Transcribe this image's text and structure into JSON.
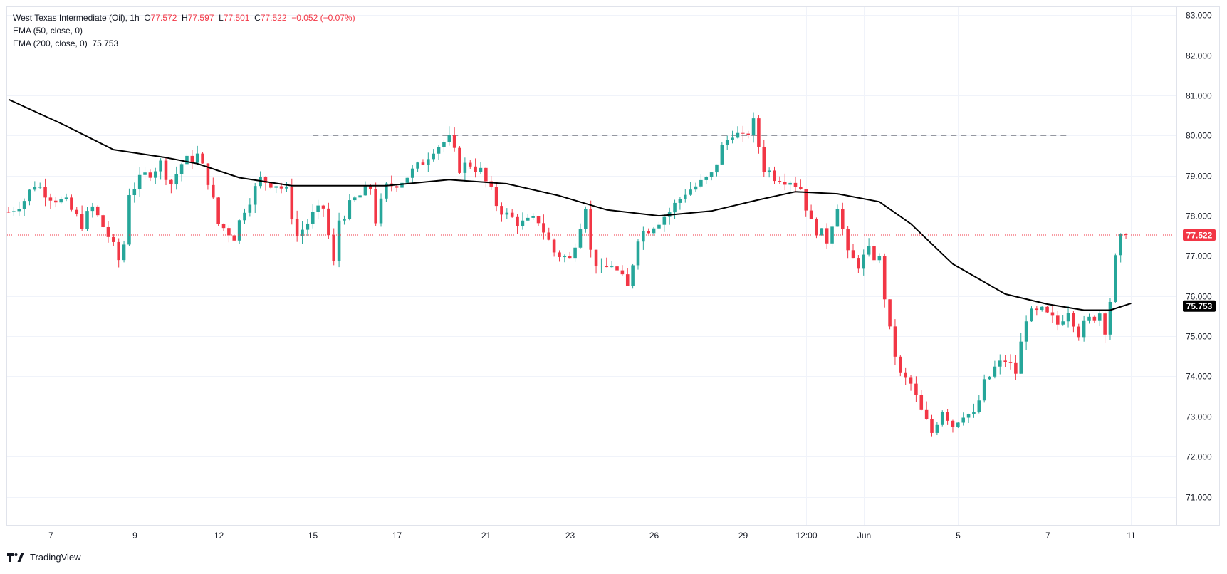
{
  "header": {
    "symbol": "West Texas Intermediate (Oil)",
    "interval": "1h",
    "o_label": "O",
    "o_value": "77.572",
    "h_label": "H",
    "h_value": "77.597",
    "l_label": "L",
    "l_value": "77.501",
    "c_label": "C",
    "c_value": "77.522",
    "change": "−0.052 (−0.07%)"
  },
  "indicators": [
    {
      "label": "EMA (50, close, 0)",
      "value": ""
    },
    {
      "label": "EMA (200, close, 0)",
      "value": "75.753"
    }
  ],
  "brand": "TradingView",
  "colors": {
    "up": "#26a69a",
    "down": "#f23645",
    "ema200": "#000000",
    "price_line": "#f23645",
    "grid": "#f0f3fa",
    "level_line": "#9598a1"
  },
  "chart_data": {
    "type": "candlestick",
    "title": "West Texas Intermediate (Oil), 1h",
    "ylim": [
      70.3,
      83.2
    ],
    "y_ticks": [
      "83.000",
      "82.000",
      "81.000",
      "80.000",
      "79.000",
      "78.000",
      "77.000",
      "76.000",
      "75.000",
      "74.000",
      "73.000",
      "72.000",
      "71.000"
    ],
    "x_ticks": [
      {
        "label": "7",
        "i": 8
      },
      {
        "label": "9",
        "i": 24
      },
      {
        "label": "12",
        "i": 40
      },
      {
        "label": "15",
        "i": 58
      },
      {
        "label": "17",
        "i": 74
      },
      {
        "label": "21",
        "i": 91
      },
      {
        "label": "23",
        "i": 107
      },
      {
        "label": "26",
        "i": 123
      },
      {
        "label": "29",
        "i": 140
      },
      {
        "label": "12:00",
        "i": 152
      },
      {
        "label": "Jun",
        "i": 163
      },
      {
        "label": "5",
        "i": 181
      },
      {
        "label": "7",
        "i": 198
      },
      {
        "label": "11",
        "i": 214
      }
    ],
    "x_count": 222,
    "close_anchors": [
      [
        0,
        78.1
      ],
      [
        3,
        78.4
      ],
      [
        5,
        78.8
      ],
      [
        8,
        78.5
      ],
      [
        11,
        78.3
      ],
      [
        14,
        77.8
      ],
      [
        16,
        78.2
      ],
      [
        19,
        77.5
      ],
      [
        21,
        76.9
      ],
      [
        22,
        77.3
      ],
      [
        23,
        78.6
      ],
      [
        26,
        79.0
      ],
      [
        29,
        79.3
      ],
      [
        31,
        78.8
      ],
      [
        33,
        79.3
      ],
      [
        36,
        79.5
      ],
      [
        38,
        78.9
      ],
      [
        40,
        77.8
      ],
      [
        43,
        77.5
      ],
      [
        45,
        78.2
      ],
      [
        48,
        78.9
      ],
      [
        51,
        78.8
      ],
      [
        53,
        78.6
      ],
      [
        55,
        77.5
      ],
      [
        58,
        78.0
      ],
      [
        60,
        78.2
      ],
      [
        62,
        76.8
      ],
      [
        63,
        77.9
      ],
      [
        66,
        78.4
      ],
      [
        69,
        78.7
      ],
      [
        70,
        77.9
      ],
      [
        72,
        78.7
      ],
      [
        75,
        78.9
      ],
      [
        78,
        79.2
      ],
      [
        81,
        79.7
      ],
      [
        84,
        79.9
      ],
      [
        86,
        79.2
      ],
      [
        88,
        79.3
      ],
      [
        90,
        79.1
      ],
      [
        93,
        78.3
      ],
      [
        95,
        78.0
      ],
      [
        98,
        77.8
      ],
      [
        101,
        77.9
      ],
      [
        104,
        77.1
      ],
      [
        107,
        76.9
      ],
      [
        110,
        78.3
      ],
      [
        111,
        77.1
      ],
      [
        113,
        76.6
      ],
      [
        115,
        76.8
      ],
      [
        118,
        76.2
      ],
      [
        120,
        77.5
      ],
      [
        123,
        77.8
      ],
      [
        126,
        78.1
      ],
      [
        129,
        78.6
      ],
      [
        132,
        78.8
      ],
      [
        134,
        79.0
      ],
      [
        136,
        79.7
      ],
      [
        138,
        80.1
      ],
      [
        140,
        79.9
      ],
      [
        142,
        80.3
      ],
      [
        144,
        79.2
      ],
      [
        146,
        79.0
      ],
      [
        149,
        78.9
      ],
      [
        151,
        78.7
      ],
      [
        153,
        77.8
      ],
      [
        156,
        77.4
      ],
      [
        158,
        78.3
      ],
      [
        160,
        77.0
      ],
      [
        162,
        76.8
      ],
      [
        164,
        77.1
      ],
      [
        166,
        76.9
      ],
      [
        168,
        75.1
      ],
      [
        170,
        74.0
      ],
      [
        172,
        73.8
      ],
      [
        174,
        73.1
      ],
      [
        176,
        72.6
      ],
      [
        178,
        73.2
      ],
      [
        180,
        72.8
      ],
      [
        182,
        73.1
      ],
      [
        184,
        73.0
      ],
      [
        186,
        73.8
      ],
      [
        188,
        74.2
      ],
      [
        190,
        74.4
      ],
      [
        192,
        74.1
      ],
      [
        194,
        75.5
      ],
      [
        197,
        75.6
      ],
      [
        200,
        75.3
      ],
      [
        202,
        75.7
      ],
      [
        204,
        75.1
      ],
      [
        206,
        75.4
      ],
      [
        208,
        75.6
      ],
      [
        209,
        75.2
      ],
      [
        210,
        75.9
      ],
      [
        211,
        76.9
      ],
      [
        212,
        77.4
      ],
      [
        213,
        77.52
      ]
    ],
    "series": [
      {
        "name": "EMA (200, close, 0)",
        "points": [
          [
            0,
            80.9
          ],
          [
            10,
            80.3
          ],
          [
            20,
            79.65
          ],
          [
            30,
            79.45
          ],
          [
            36,
            79.3
          ],
          [
            44,
            78.95
          ],
          [
            54,
            78.75
          ],
          [
            62,
            78.75
          ],
          [
            72,
            78.75
          ],
          [
            84,
            78.9
          ],
          [
            95,
            78.8
          ],
          [
            105,
            78.5
          ],
          [
            114,
            78.15
          ],
          [
            124,
            78.0
          ],
          [
            134,
            78.12
          ],
          [
            143,
            78.4
          ],
          [
            150,
            78.6
          ],
          [
            158,
            78.55
          ],
          [
            166,
            78.35
          ],
          [
            172,
            77.8
          ],
          [
            180,
            76.8
          ],
          [
            190,
            76.05
          ],
          [
            198,
            75.8
          ],
          [
            205,
            75.65
          ],
          [
            210,
            75.65
          ],
          [
            214,
            75.82
          ]
        ]
      }
    ],
    "level_line": {
      "value": 80.0,
      "i_start": 58,
      "i_end": 202
    },
    "last_price": 77.522,
    "last_price_label": "77.522",
    "ema200_label": "75.753",
    "ema200_value": 75.753
  }
}
